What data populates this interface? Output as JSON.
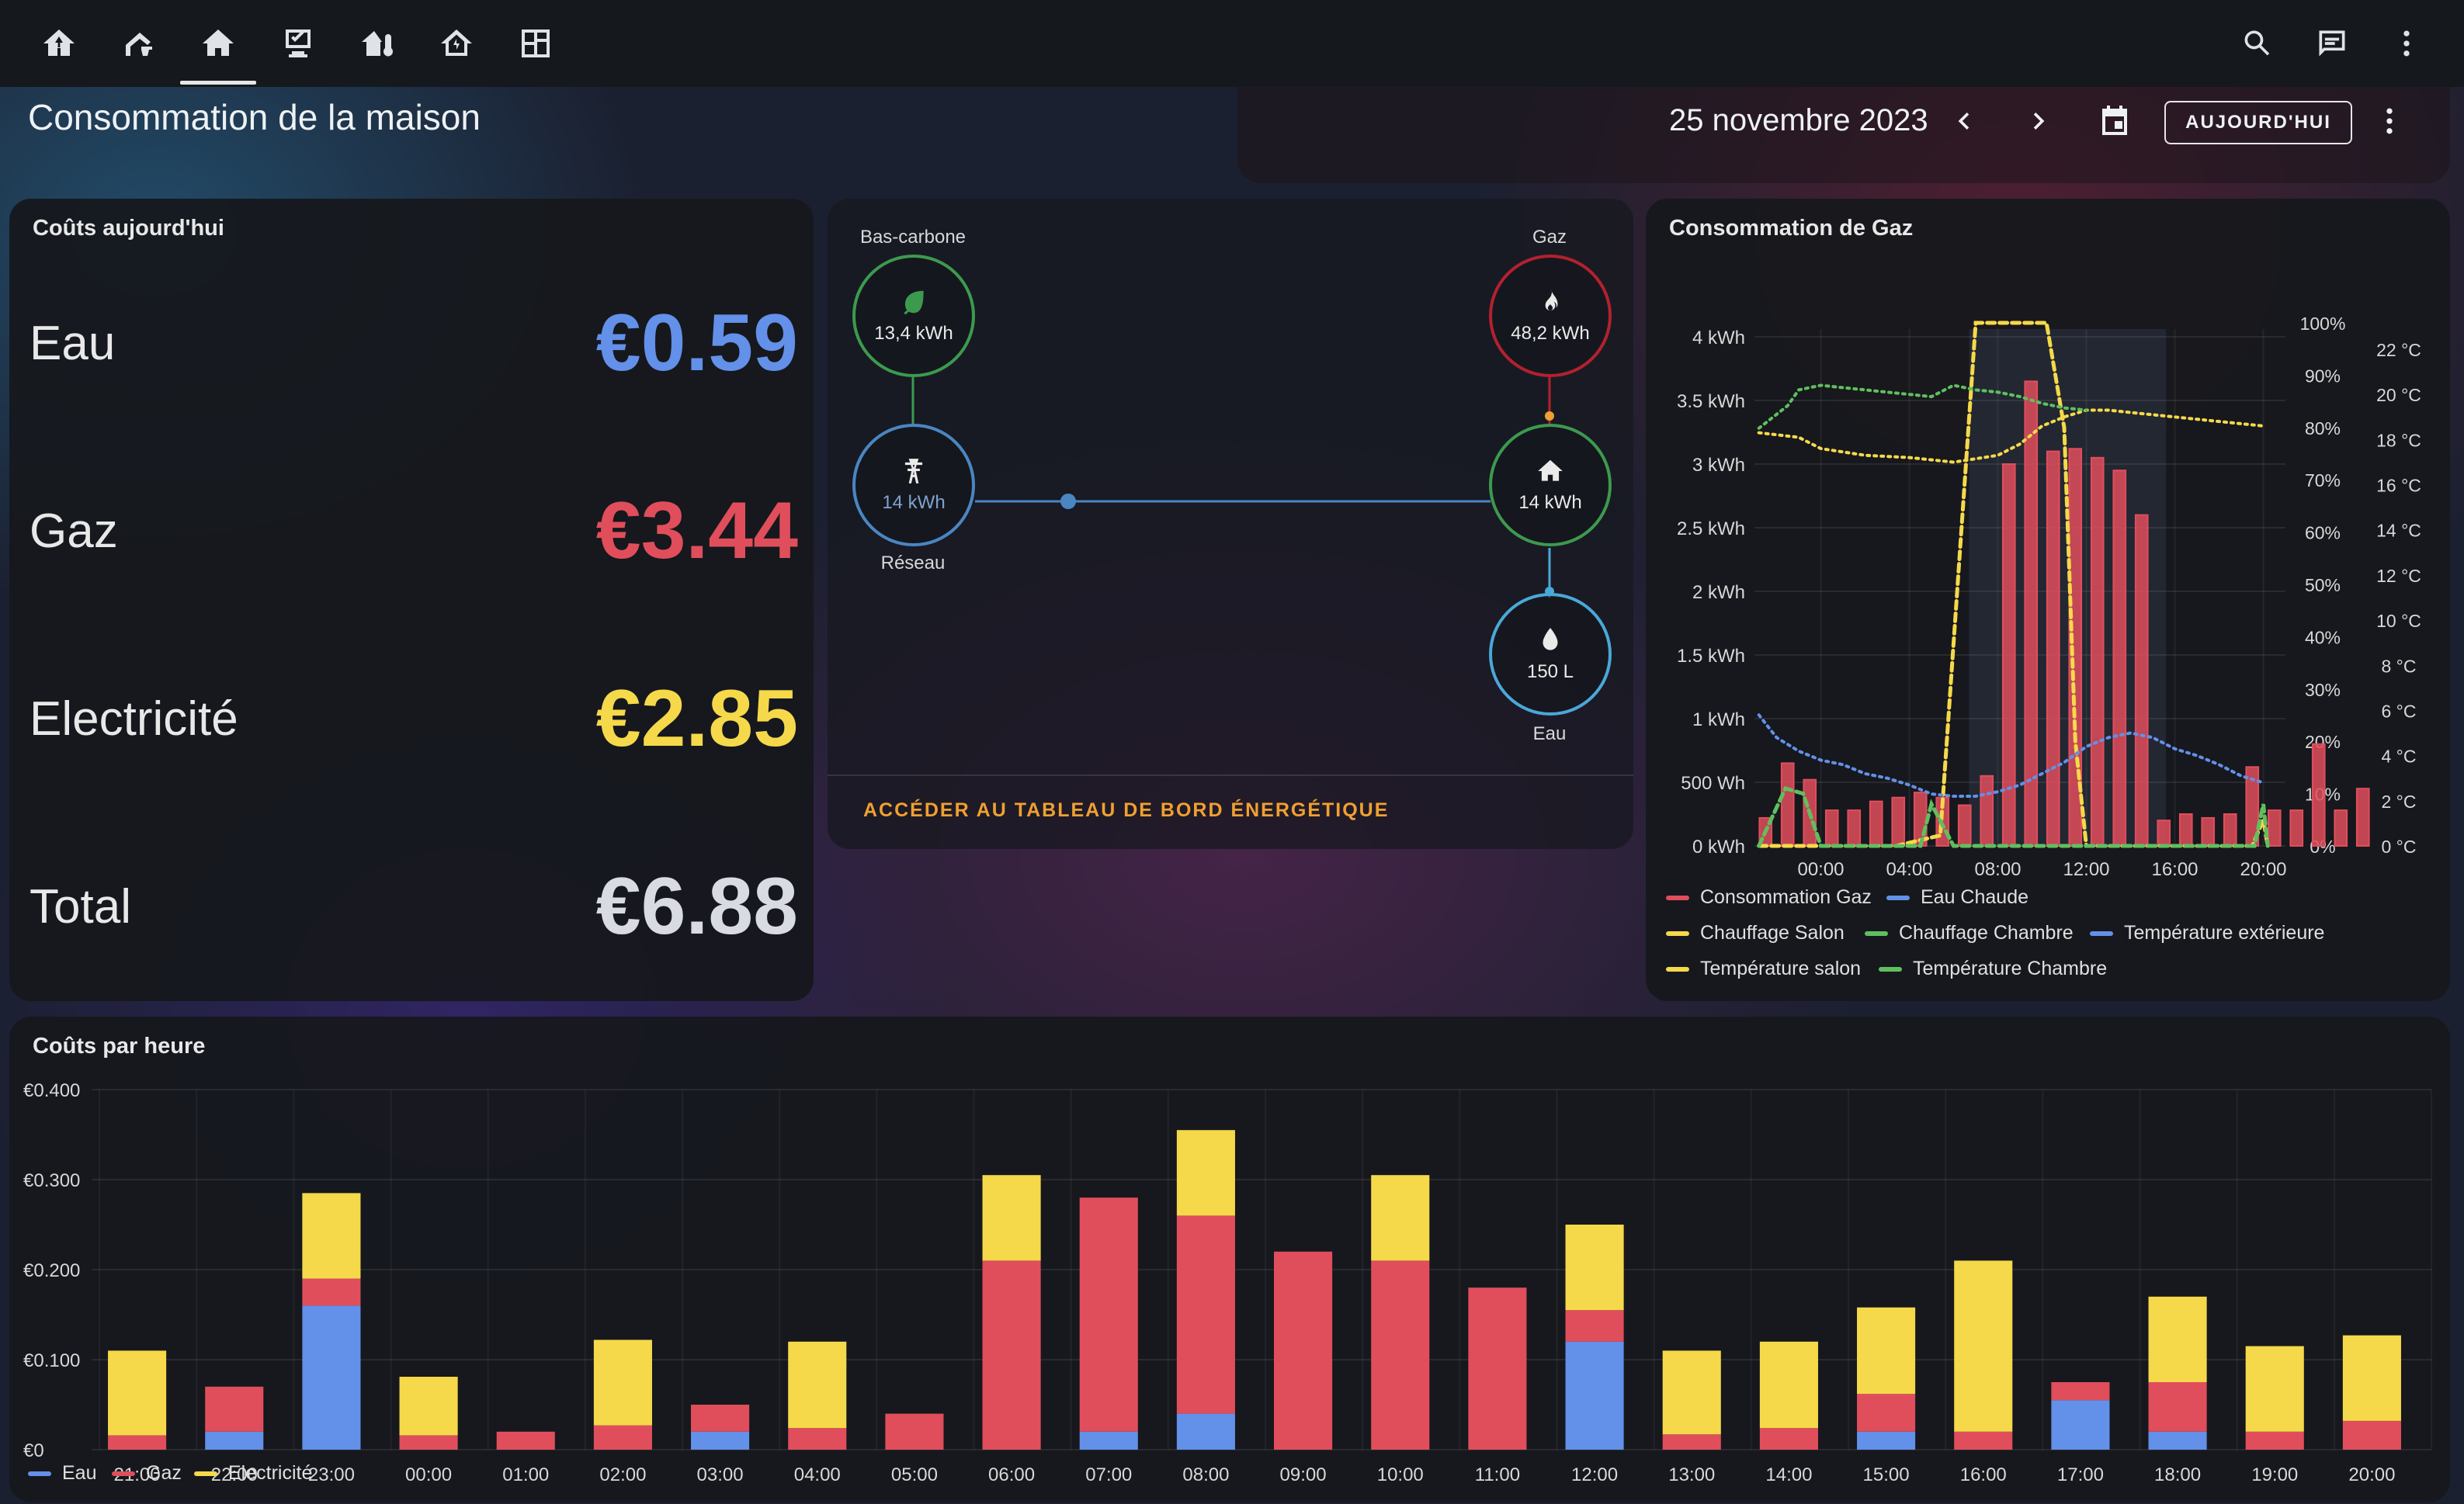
{
  "nav": {
    "icons": [
      "solar-home-icon",
      "bell-home-icon",
      "home-icon",
      "monitor-check-icon",
      "home-thermometer-icon",
      "home-lightning-icon",
      "floor-plan-icon"
    ],
    "active": "home-icon",
    "right": [
      "search-icon",
      "chat-icon",
      "more-vertical-icon"
    ]
  },
  "page": {
    "title": "Consommation de la maison",
    "date": "25 novembre 2023",
    "today_label": "AUJOURD'HUI"
  },
  "costs": {
    "title": "Coûts aujourd'hui",
    "rows": [
      {
        "label": "Eau",
        "value": "€0.59",
        "color": "#6390e8"
      },
      {
        "label": "Gaz",
        "value": "€3.44",
        "color": "#e04e5c"
      },
      {
        "label": "Electricité",
        "value": "€2.85",
        "color": "#f5d94a"
      },
      {
        "label": "Total",
        "value": "€6.88",
        "color": "#d8dbe2"
      }
    ]
  },
  "flow": {
    "low_carbon": {
      "label": "Bas-carbone",
      "value": "13,4 kWh",
      "color": "#3c9a4e"
    },
    "gas": {
      "label": "Gaz",
      "value": "48,2 kWh",
      "color": "#b3212f"
    },
    "grid": {
      "label": "Réseau",
      "value": "14 kWh",
      "color": "#4a86c2"
    },
    "home": {
      "value": "14 kWh",
      "color": "#3c9a4e"
    },
    "water": {
      "label": "Eau",
      "value": "150 L",
      "color": "#4aa8d8"
    },
    "link": "ACCÉDER AU TABLEAU DE BORD ÉNERGÉTIQUE"
  },
  "chart_data": [
    {
      "type": "bar",
      "title": "Consommation de Gaz",
      "x_ticks": [
        "00:00",
        "04:00",
        "08:00",
        "12:00",
        "16:00",
        "20:00"
      ],
      "y_left_ticks": [
        "0 kWh",
        "500 Wh",
        "1 kWh",
        "1.5 kWh",
        "2 kWh",
        "2.5 kWh",
        "3 kWh",
        "3.5 kWh",
        "4 kWh"
      ],
      "y_pct_ticks": [
        "0%",
        "10%",
        "20%",
        "30%",
        "40%",
        "50%",
        "60%",
        "70%",
        "80%",
        "90%",
        "100%"
      ],
      "y_temp_ticks": [
        "0 °C",
        "2 °C",
        "4 °C",
        "6 °C",
        "8 °C",
        "10 °C",
        "12 °C",
        "14 °C",
        "16 °C",
        "18 °C",
        "20 °C",
        "22 °C"
      ],
      "ylim_left": [
        0,
        4
      ],
      "ylim_pct": [
        0,
        100
      ],
      "ylim_temp": [
        0,
        22
      ],
      "hours_start": -3,
      "series": [
        {
          "name": "Consommation Gaz",
          "axis": "kwh",
          "color": "#e04e5c",
          "values": [
            0.22,
            0.65,
            0.52,
            0.28,
            0.28,
            0.35,
            0.38,
            0.42,
            0.38,
            0.32,
            0.55,
            3.0,
            3.65,
            3.1,
            3.12,
            3.05,
            2.95,
            2.6,
            0.2,
            0.25,
            0.22,
            0.25,
            0.62,
            0.28,
            0.28,
            0.8,
            0.28,
            0.45
          ]
        },
        {
          "name": "Eau Chaude",
          "axis": "kwh",
          "color": "#6390e8",
          "values": []
        },
        {
          "name": "Chauffage Salon",
          "axis": "pct",
          "color": "#f5d94a",
          "points": [
            [
              -2.8,
              0
            ],
            [
              3.4,
              0
            ],
            [
              5.4,
              2
            ],
            [
              7,
              100
            ],
            [
              10.2,
              100
            ],
            [
              11,
              80
            ],
            [
              11.5,
              20
            ],
            [
              12,
              0
            ],
            [
              19.5,
              0
            ],
            [
              20,
              5
            ],
            [
              20.2,
              0
            ]
          ]
        },
        {
          "name": "Chauffage Chambre",
          "axis": "pct",
          "color": "#5fbf5f",
          "points": [
            [
              -2.8,
              0
            ],
            [
              -1.6,
              11
            ],
            [
              -0.8,
              10
            ],
            [
              0,
              0
            ],
            [
              4.5,
              0
            ],
            [
              5,
              8
            ],
            [
              6,
              0
            ],
            [
              19.6,
              0
            ],
            [
              20,
              8
            ],
            [
              20.2,
              0
            ]
          ]
        },
        {
          "name": "Température extérieure",
          "axis": "temp",
          "color": "#6390e8",
          "points": [
            [
              -2.8,
              5.8
            ],
            [
              -2,
              4.8
            ],
            [
              -1,
              4.2
            ],
            [
              0,
              3.8
            ],
            [
              1,
              3.6
            ],
            [
              2,
              3.2
            ],
            [
              3,
              3.0
            ],
            [
              4,
              2.7
            ],
            [
              5,
              2.3
            ],
            [
              6,
              2.2
            ],
            [
              7,
              2.2
            ],
            [
              8,
              2.4
            ],
            [
              9,
              2.7
            ],
            [
              10,
              3.2
            ],
            [
              11,
              3.7
            ],
            [
              12,
              4.4
            ],
            [
              13,
              4.8
            ],
            [
              14,
              5.0
            ],
            [
              15,
              4.8
            ],
            [
              16,
              4.3
            ],
            [
              17,
              4.0
            ],
            [
              18,
              3.6
            ],
            [
              19,
              3.1
            ],
            [
              20,
              2.8
            ]
          ]
        },
        {
          "name": "Température salon",
          "axis": "temp",
          "color": "#f5d94a",
          "points": [
            [
              -2.8,
              18.3
            ],
            [
              -1,
              18.1
            ],
            [
              0,
              17.6
            ],
            [
              2,
              17.3
            ],
            [
              4,
              17.2
            ],
            [
              6,
              17.0
            ],
            [
              8,
              17.3
            ],
            [
              9,
              17.8
            ],
            [
              10,
              18.6
            ],
            [
              11,
              19.0
            ],
            [
              12,
              19.3
            ],
            [
              13,
              19.3
            ],
            [
              14,
              19.2
            ],
            [
              16,
              19.0
            ],
            [
              18,
              18.8
            ],
            [
              20,
              18.6
            ]
          ]
        },
        {
          "name": "Température Chambre",
          "axis": "temp",
          "color": "#5fbf5f",
          "points": [
            [
              -2.8,
              18.5
            ],
            [
              -1.5,
              19.5
            ],
            [
              -1,
              20.2
            ],
            [
              0,
              20.4
            ],
            [
              1,
              20.3
            ],
            [
              2,
              20.2
            ],
            [
              3,
              20.1
            ],
            [
              4,
              20.0
            ],
            [
              5,
              19.9
            ],
            [
              6,
              20.4
            ],
            [
              7,
              20.2
            ],
            [
              8,
              20.1
            ],
            [
              9,
              19.9
            ],
            [
              10,
              19.6
            ],
            [
              11,
              19.4
            ],
            [
              12,
              19.3
            ]
          ]
        }
      ]
    },
    {
      "type": "bar",
      "title": "Coûts par heure",
      "categories": [
        "21:00",
        "22:00",
        "23:00",
        "00:00",
        "01:00",
        "02:00",
        "03:00",
        "04:00",
        "05:00",
        "06:00",
        "07:00",
        "08:00",
        "09:00",
        "10:00",
        "11:00",
        "12:00",
        "13:00",
        "14:00",
        "15:00",
        "16:00",
        "17:00",
        "18:00",
        "19:00",
        "20:00"
      ],
      "y_ticks": [
        "€0",
        "€0.100",
        "€0.200",
        "€0.300",
        "€0.400"
      ],
      "ylim": [
        0,
        0.4
      ],
      "stacked": true,
      "series": [
        {
          "name": "Eau",
          "color": "#6390e8",
          "values": [
            0,
            0.02,
            0.16,
            0,
            0,
            0,
            0.02,
            0,
            0,
            0,
            0.02,
            0.04,
            0,
            0,
            0,
            0.12,
            0,
            0,
            0.02,
            0,
            0.055,
            0.02,
            0,
            0
          ]
        },
        {
          "name": "Gaz",
          "color": "#e04e5c",
          "values": [
            0.016,
            0.05,
            0.03,
            0.016,
            0.02,
            0.027,
            0.03,
            0.024,
            0.04,
            0.21,
            0.26,
            0.22,
            0.22,
            0.21,
            0.18,
            0.035,
            0.017,
            0.024,
            0.042,
            0.02,
            0.02,
            0.055,
            0.02,
            0.032
          ]
        },
        {
          "name": "Electricité",
          "color": "#f5d94a",
          "values": [
            0.094,
            0,
            0.095,
            0.065,
            0,
            0.095,
            0,
            0.096,
            0,
            0.095,
            0,
            0.095,
            0,
            0.095,
            0,
            0.095,
            0.093,
            0.096,
            0.096,
            0.19,
            0,
            0.095,
            0.095,
            0.095
          ]
        }
      ]
    }
  ]
}
